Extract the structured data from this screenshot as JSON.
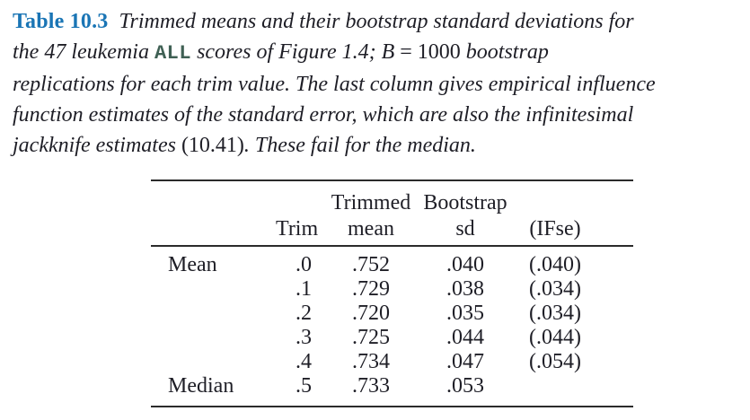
{
  "colors": {
    "accent_blue": "#1a75b5",
    "code_green": "#3f6054",
    "text": "#1e1e26",
    "rule": "#2b2b2b",
    "background": "#ffffff"
  },
  "caption": {
    "label": "Table 10.3",
    "lines": [
      [
        {
          "t": "Table 10.3",
          "s": "label"
        },
        {
          "t": "Trimmed means and their bootstrap standard deviations for",
          "s": "i"
        }
      ],
      [
        {
          "t": "the 47 leukemia ",
          "s": "i"
        },
        {
          "t": "ALL",
          "s": "code"
        },
        {
          "t": " scores of Figure 1.4; B",
          "s": "i"
        },
        {
          "t": " = 1000 ",
          "s": "rm"
        },
        {
          "t": "bootstrap",
          "s": "i"
        }
      ],
      [
        {
          "t": "replications for each trim value. The last column gives empirical influence",
          "s": "i"
        }
      ],
      [
        {
          "t": "function estimates of the standard error, which are also the infinitesimal",
          "s": "i"
        }
      ],
      [
        {
          "t": "jackknife estimates ",
          "s": "i"
        },
        {
          "t": "(10.41)",
          "s": "rm"
        },
        {
          "t": ". These fail for the median.",
          "s": "i"
        }
      ]
    ]
  },
  "chart_data": {
    "type": "table",
    "title": "Table 10.3 Trimmed means and their bootstrap standard deviations for the 47 leukemia ALL scores of Figure 1.4; B = 1000 bootstrap replications for each trim value. The last column gives empirical influence function estimates of the standard error, which are also the infinitesimal jackknife estimates (10.41). These fail for the median.",
    "columns": [
      "",
      "Trim",
      "Trimmed mean",
      "Bootstrap sd",
      "(IFse)"
    ],
    "rows": [
      [
        "Mean",
        ".0",
        ".752",
        ".040",
        "(.040)"
      ],
      [
        "",
        ".1",
        ".729",
        ".038",
        "(.034)"
      ],
      [
        "",
        ".2",
        ".720",
        ".035",
        "(.034)"
      ],
      [
        "",
        ".3",
        ".725",
        ".044",
        "(.044)"
      ],
      [
        "",
        ".4",
        ".734",
        ".047",
        "(.054)"
      ],
      [
        "Median",
        ".5",
        ".733",
        ".053",
        ""
      ]
    ]
  },
  "table": {
    "header_row1": [
      "",
      "",
      "Trimmed",
      "Bootstrap",
      "",
      ""
    ],
    "header_row2": [
      "",
      "Trim",
      "mean",
      "sd",
      "(IFse)",
      ""
    ],
    "rows": [
      [
        "Mean",
        ".0",
        ".752",
        ".040",
        "(.040)",
        ""
      ],
      [
        "",
        ".1",
        ".729",
        ".038",
        "(.034)",
        ""
      ],
      [
        "",
        ".2",
        ".720",
        ".035",
        "(.034)",
        ""
      ],
      [
        "",
        ".3",
        ".725",
        ".044",
        "(.044)",
        ""
      ],
      [
        "",
        ".4",
        ".734",
        ".047",
        "(.054)",
        ""
      ],
      [
        "Median",
        ".5",
        ".733",
        ".053",
        "",
        ""
      ]
    ]
  }
}
